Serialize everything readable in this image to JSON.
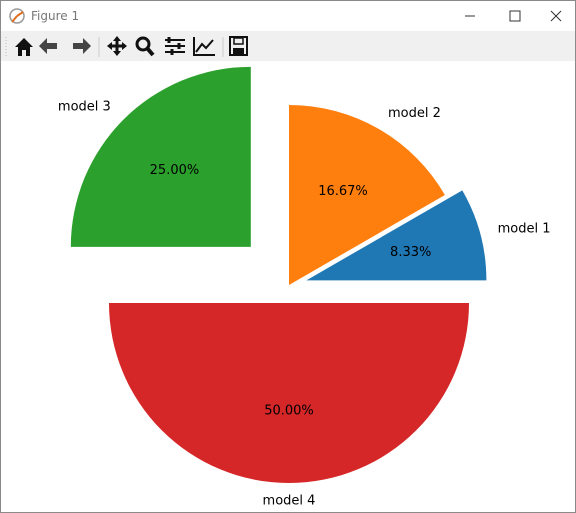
{
  "window": {
    "title": "Figure 1"
  },
  "chart_data": {
    "type": "pie",
    "categories": [
      "model 1",
      "model 2",
      "model 3",
      "model 4"
    ],
    "values": [
      8.33,
      16.67,
      25,
      50
    ],
    "value_labels": [
      "8.33%",
      "16.67%",
      "25.00%",
      "50.00%"
    ],
    "colors": [
      "#1f77b4",
      "#ff7f0e",
      "#2ca02c",
      "#d62728"
    ],
    "explode": [
      0.1,
      0,
      0.3,
      0.1
    ]
  }
}
